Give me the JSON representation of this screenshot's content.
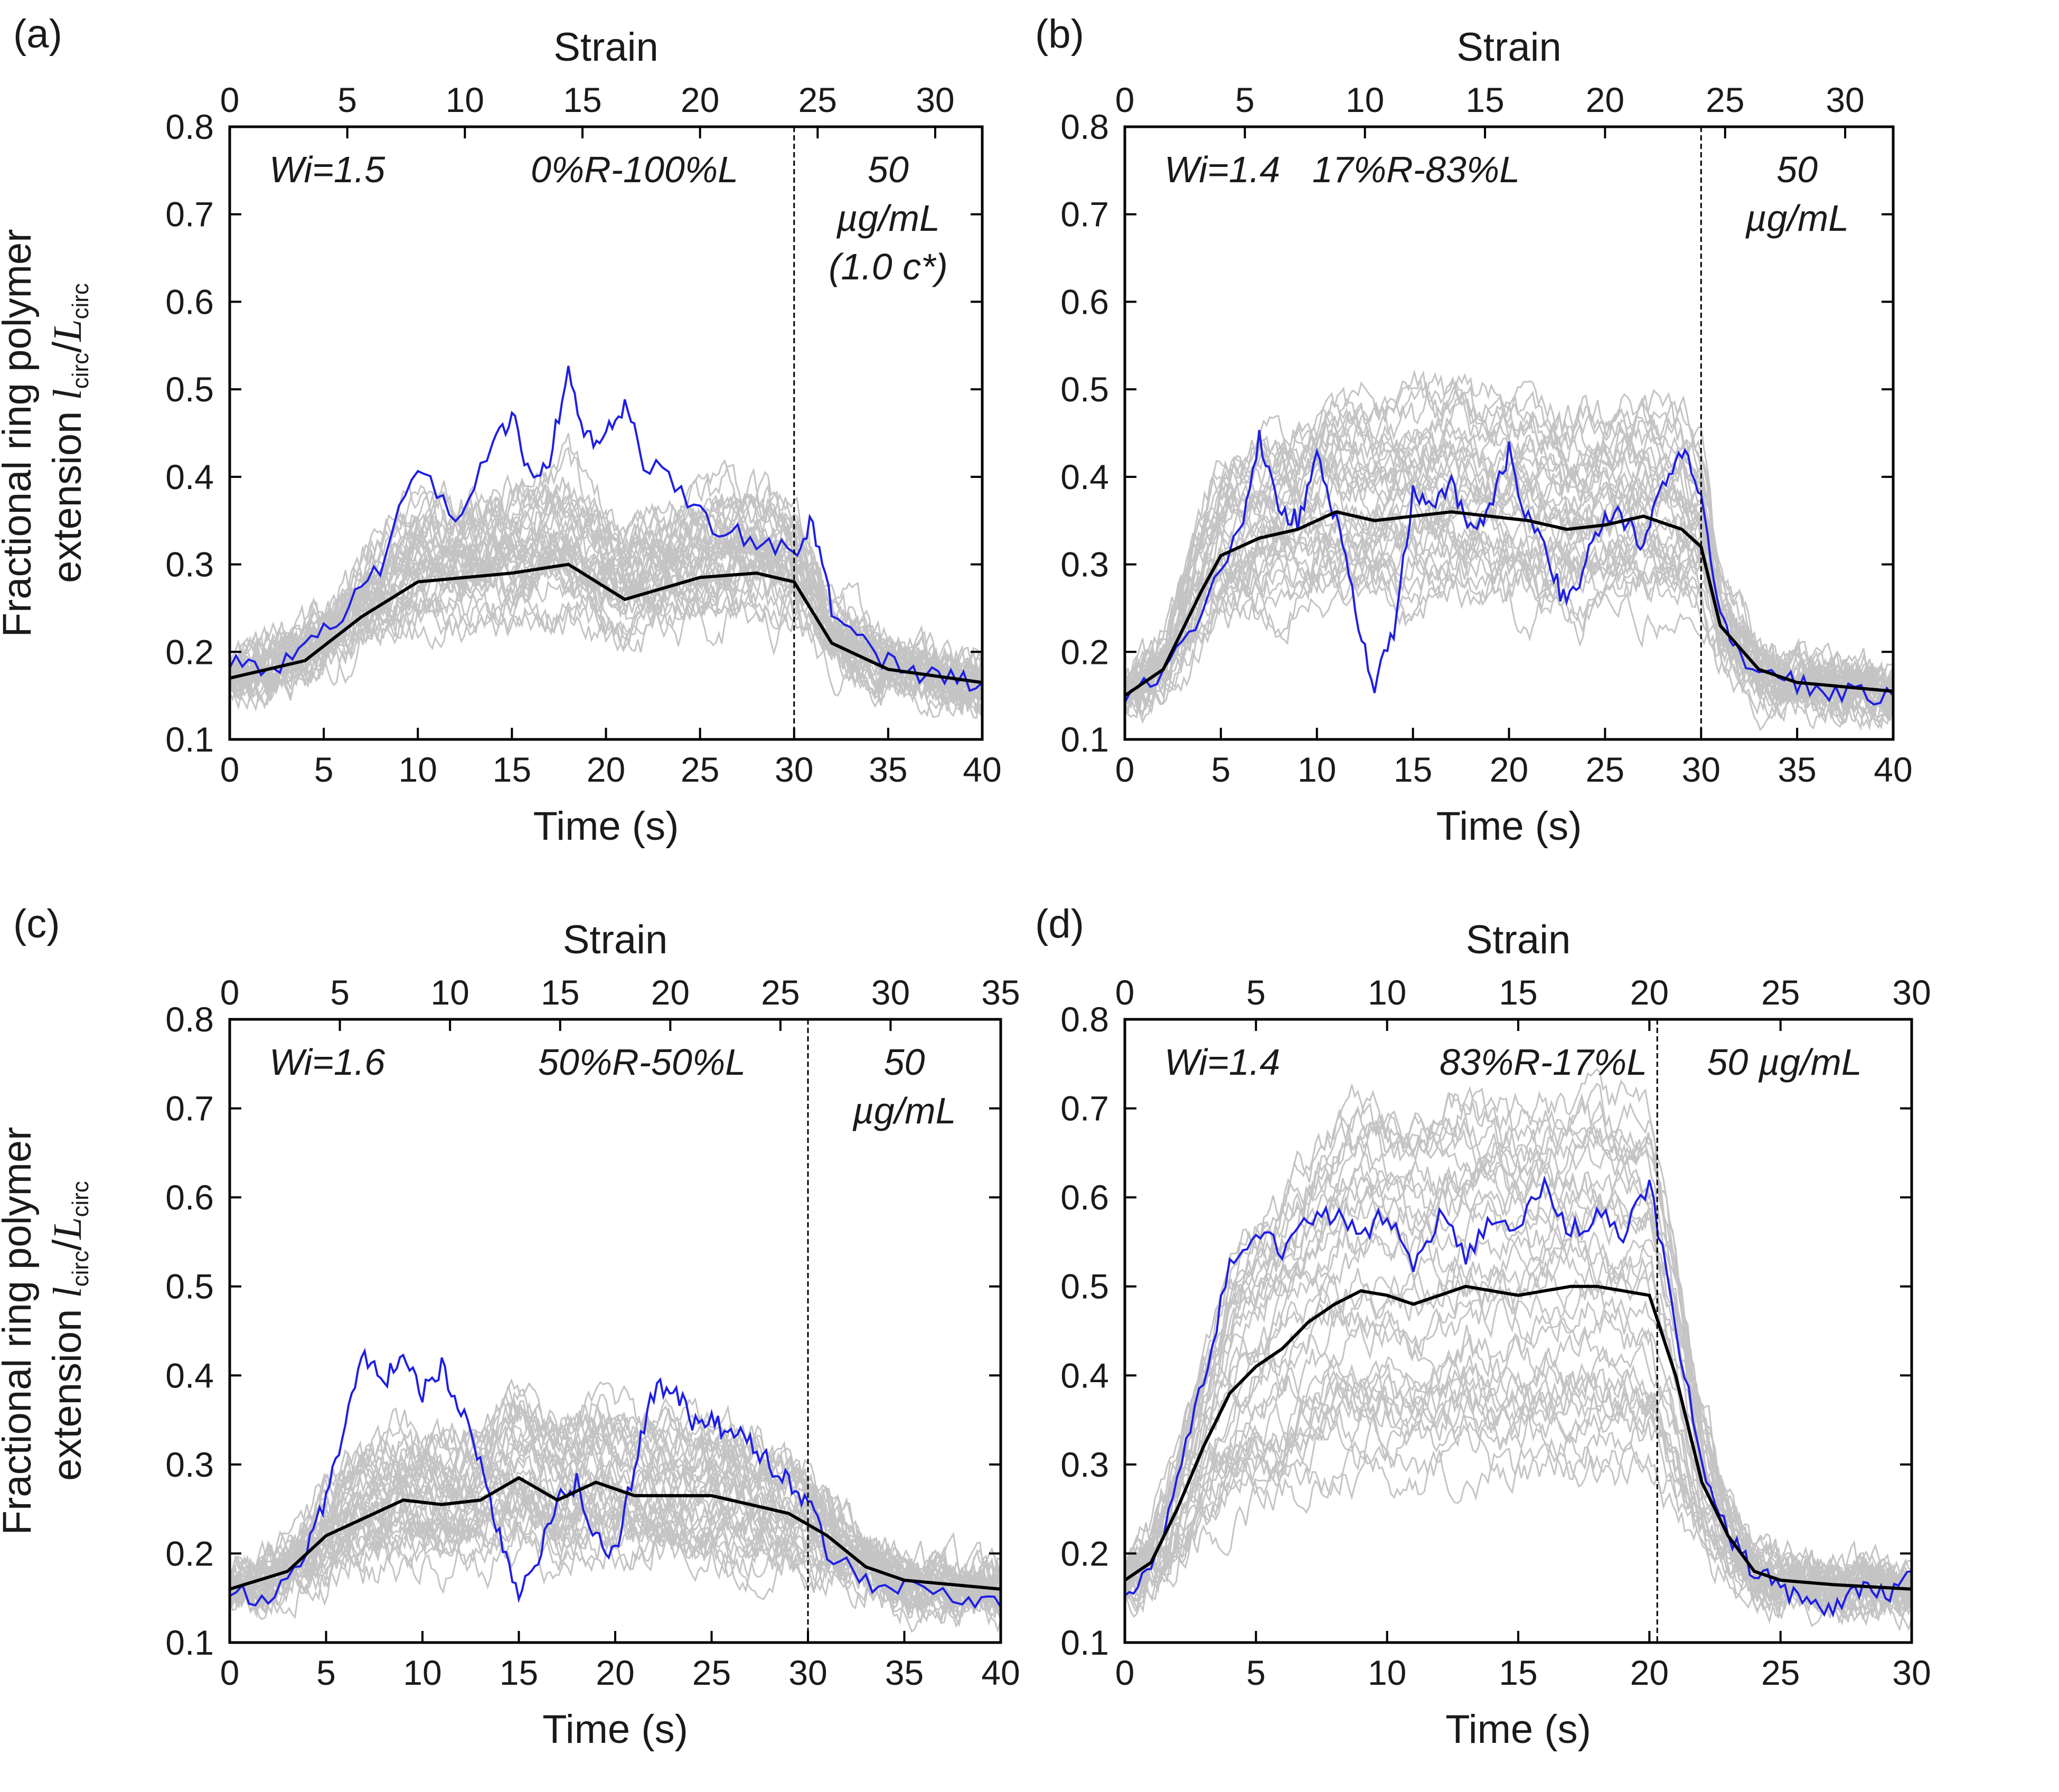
{
  "chart_data": [
    {
      "type": "line",
      "panel": "(a)",
      "top_xlabel": "Strain",
      "top_ticks": [
        0,
        5,
        10,
        15,
        20,
        25,
        30
      ],
      "top_max": 32,
      "xlabel": "Time (s)",
      "xlim": [
        0,
        40
      ],
      "xticks": [
        0,
        5,
        10,
        15,
        20,
        25,
        30,
        35,
        40
      ],
      "ylabel_line1": "Fractional ring polymer",
      "ylabel_line2": "extension l_circ/L_circ",
      "ylim": [
        0.1,
        0.8
      ],
      "yticks": [
        0.1,
        0.2,
        0.3,
        0.4,
        0.5,
        0.6,
        0.7,
        0.8
      ],
      "annotations": {
        "wi": "Wi=1.5",
        "composition": "0%R-100%L",
        "conc_lines": [
          "50",
          "µg/mL",
          "(1.0 c*)"
        ]
      },
      "flow_stop_time": 30,
      "colors": {
        "individual": "#c4c4c4",
        "highlighted": "#1e1ee6",
        "average": "#000000"
      },
      "series": [
        {
          "name": "average",
          "x": [
            0,
            4,
            7,
            10,
            15,
            18,
            21,
            25,
            28,
            30,
            32,
            35,
            40
          ],
          "values": [
            0.17,
            0.19,
            0.24,
            0.28,
            0.29,
            0.3,
            0.26,
            0.285,
            0.29,
            0.28,
            0.21,
            0.18,
            0.165
          ]
        },
        {
          "name": "highlighted",
          "x": [
            0,
            2,
            4,
            6,
            8,
            10,
            12,
            14,
            15,
            16,
            17,
            18,
            19,
            20,
            21,
            22,
            24,
            26,
            28,
            30,
            31,
            32,
            34,
            36,
            38,
            40
          ],
          "values": [
            0.19,
            0.18,
            0.2,
            0.24,
            0.3,
            0.41,
            0.35,
            0.44,
            0.47,
            0.4,
            0.42,
            0.52,
            0.44,
            0.45,
            0.48,
            0.42,
            0.38,
            0.34,
            0.33,
            0.31,
            0.35,
            0.25,
            0.2,
            0.18,
            0.17,
            0.165
          ]
        }
      ]
    },
    {
      "type": "line",
      "panel": "(b)",
      "top_xlabel": "Strain",
      "top_ticks": [
        0,
        5,
        10,
        15,
        20,
        25,
        30
      ],
      "top_max": 32,
      "xlabel": "Time (s)",
      "xlim": [
        0,
        40
      ],
      "xticks": [
        0,
        5,
        10,
        15,
        20,
        25,
        30,
        35,
        40
      ],
      "ylim": [
        0.1,
        0.8
      ],
      "yticks": [
        0.1,
        0.2,
        0.3,
        0.4,
        0.5,
        0.6,
        0.7,
        0.8
      ],
      "annotations": {
        "wi": "Wi=1.4",
        "composition": "17%R-83%L",
        "conc_lines": [
          "50",
          "µg/mL"
        ]
      },
      "flow_stop_time": 30,
      "colors": {
        "individual": "#c4c4c4",
        "highlighted": "#1e1ee6",
        "average": "#000000"
      },
      "series": [
        {
          "name": "average",
          "x": [
            0,
            2,
            4,
            5,
            7,
            9,
            11,
            13,
            15,
            17,
            19,
            21,
            23,
            25,
            27,
            29,
            30,
            31,
            33,
            35,
            40
          ],
          "values": [
            0.15,
            0.18,
            0.27,
            0.31,
            0.33,
            0.34,
            0.36,
            0.35,
            0.355,
            0.36,
            0.355,
            0.35,
            0.34,
            0.345,
            0.355,
            0.34,
            0.32,
            0.23,
            0.18,
            0.165,
            0.155
          ]
        },
        {
          "name": "highlighted",
          "x": [
            0,
            2,
            4,
            6,
            7,
            8,
            9,
            10,
            11,
            12,
            13,
            14,
            15,
            16,
            17,
            18,
            19,
            20,
            21,
            22,
            23,
            24,
            25,
            26,
            27,
            28,
            29,
            30,
            31,
            32,
            34,
            36,
            38,
            40
          ],
          "values": [
            0.15,
            0.17,
            0.25,
            0.34,
            0.45,
            0.36,
            0.35,
            0.42,
            0.35,
            0.25,
            0.16,
            0.22,
            0.38,
            0.36,
            0.39,
            0.34,
            0.36,
            0.43,
            0.35,
            0.31,
            0.25,
            0.3,
            0.36,
            0.35,
            0.32,
            0.39,
            0.43,
            0.38,
            0.24,
            0.19,
            0.17,
            0.16,
            0.15,
            0.15
          ]
        }
      ]
    },
    {
      "type": "line",
      "panel": "(c)",
      "top_xlabel": "Strain",
      "top_ticks": [
        0,
        5,
        10,
        15,
        20,
        25,
        30,
        35
      ],
      "top_max": 35,
      "xlabel": "Time (s)",
      "xlim": [
        0,
        40
      ],
      "xticks": [
        0,
        5,
        10,
        15,
        20,
        25,
        30,
        35,
        40
      ],
      "ylabel_line1": "Fractional ring polymer",
      "ylabel_line2": "extension l_circ/L_circ",
      "ylim": [
        0.1,
        0.8
      ],
      "yticks": [
        0.1,
        0.2,
        0.3,
        0.4,
        0.5,
        0.6,
        0.7,
        0.8
      ],
      "annotations": {
        "wi": "Wi=1.6",
        "composition": "50%R-50%L",
        "conc_lines": [
          "50",
          "µg/mL"
        ]
      },
      "flow_stop_time": 30,
      "colors": {
        "individual": "#c4c4c4",
        "highlighted": "#1e1ee6",
        "average": "#000000"
      },
      "series": [
        {
          "name": "average",
          "x": [
            0,
            3,
            5,
            7,
            9,
            11,
            13,
            15,
            17,
            19,
            21,
            23,
            25,
            27,
            29,
            31,
            33,
            35,
            40
          ],
          "values": [
            0.16,
            0.18,
            0.22,
            0.24,
            0.26,
            0.255,
            0.26,
            0.285,
            0.26,
            0.28,
            0.265,
            0.265,
            0.265,
            0.255,
            0.245,
            0.22,
            0.185,
            0.17,
            0.16
          ]
        },
        {
          "name": "highlighted",
          "x": [
            0,
            2,
            4,
            5,
            6,
            7,
            8,
            9,
            10,
            11,
            12,
            13,
            14,
            15,
            16,
            17,
            18,
            19,
            20,
            21,
            22,
            23,
            24,
            25,
            26,
            27,
            28,
            29,
            30,
            31,
            33,
            35,
            38,
            40
          ],
          "values": [
            0.16,
            0.15,
            0.2,
            0.26,
            0.35,
            0.42,
            0.39,
            0.43,
            0.38,
            0.41,
            0.36,
            0.3,
            0.22,
            0.16,
            0.2,
            0.26,
            0.28,
            0.22,
            0.2,
            0.3,
            0.38,
            0.39,
            0.35,
            0.35,
            0.33,
            0.33,
            0.3,
            0.28,
            0.26,
            0.2,
            0.17,
            0.16,
            0.15,
            0.14
          ]
        }
      ]
    },
    {
      "type": "line",
      "panel": "(d)",
      "top_xlabel": "Strain",
      "top_ticks": [
        0,
        5,
        10,
        15,
        20,
        25,
        30
      ],
      "top_max": 30,
      "xlabel": "Time (s)",
      "xlim": [
        0,
        30
      ],
      "xticks": [
        0,
        5,
        10,
        15,
        20,
        25,
        30
      ],
      "ylim": [
        0.1,
        0.8
      ],
      "yticks": [
        0.1,
        0.2,
        0.3,
        0.4,
        0.5,
        0.6,
        0.7,
        0.8
      ],
      "annotations": {
        "wi": "Wi=1.4",
        "composition": "83%R-17%L",
        "conc_lines": [
          "50 µg/mL"
        ]
      },
      "flow_stop_time": 20.3,
      "colors": {
        "individual": "#c4c4c4",
        "highlighted": "#1e1ee6",
        "average": "#000000"
      },
      "series": [
        {
          "name": "average",
          "x": [
            0,
            1,
            2,
            3,
            4,
            5,
            6,
            7,
            8,
            9,
            10,
            11,
            12,
            13,
            14,
            15,
            16,
            17,
            18,
            19,
            20,
            21,
            22,
            23,
            24,
            25,
            27,
            30
          ],
          "values": [
            0.17,
            0.19,
            0.25,
            0.32,
            0.38,
            0.41,
            0.43,
            0.46,
            0.48,
            0.495,
            0.49,
            0.48,
            0.49,
            0.5,
            0.495,
            0.49,
            0.495,
            0.5,
            0.5,
            0.495,
            0.49,
            0.4,
            0.28,
            0.22,
            0.18,
            0.17,
            0.165,
            0.16
          ]
        },
        {
          "name": "highlighted",
          "x": [
            0,
            1,
            2,
            3,
            4,
            5,
            6,
            7,
            8,
            9,
            10,
            11,
            12,
            13,
            14,
            15,
            16,
            17,
            18,
            19,
            20,
            21,
            22,
            23,
            24,
            25,
            26,
            27,
            28,
            29,
            30
          ],
          "values": [
            0.16,
            0.18,
            0.28,
            0.4,
            0.52,
            0.57,
            0.54,
            0.57,
            0.58,
            0.56,
            0.58,
            0.52,
            0.58,
            0.53,
            0.58,
            0.57,
            0.61,
            0.56,
            0.58,
            0.56,
            0.62,
            0.45,
            0.3,
            0.22,
            0.18,
            0.16,
            0.15,
            0.14,
            0.16,
            0.15,
            0.18
          ]
        }
      ]
    }
  ]
}
